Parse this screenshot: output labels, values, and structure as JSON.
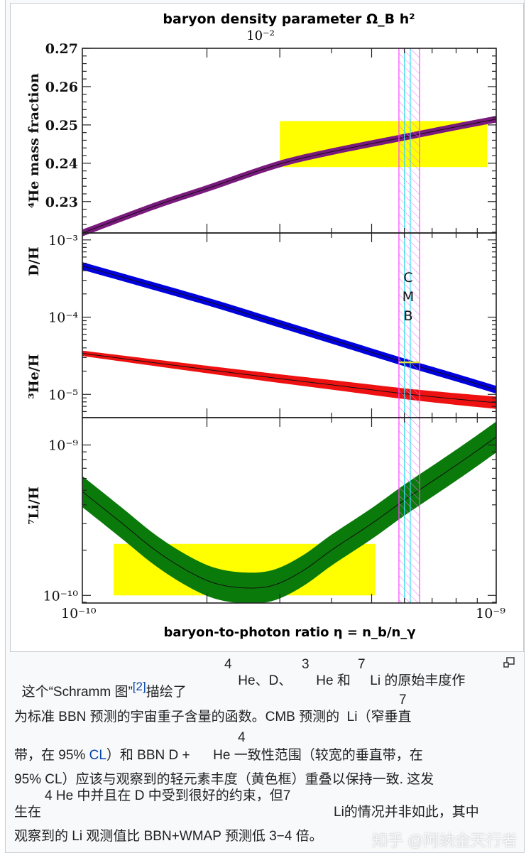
{
  "chart_data": {
    "type": "line",
    "title": "baryon density parameter Ω_B h²",
    "top_axis_tick_label": "10⁻²",
    "xlabel": "baryon-to-photon ratio η = n_b/n_γ",
    "xscale": "log",
    "xlim": [
      1e-10,
      1e-09
    ],
    "xtick_labels": [
      "10⁻¹⁰",
      "10⁻⁹"
    ],
    "panels": [
      {
        "ylabel": "⁴He mass fraction",
        "yscale": "linear",
        "ylim": [
          0.2218,
          0.27
        ],
        "ytick_labels": [
          "0.27",
          "0.26",
          "0.25",
          "0.24",
          "0.23"
        ],
        "yticks": [
          0.27,
          0.26,
          0.25,
          0.24,
          0.23
        ],
        "series": [
          {
            "x": [
              1e-10,
              1.5e-10,
              2e-10,
              3e-10,
              4e-10,
              6e-10,
              8e-10,
              1e-09
            ],
            "y": [
              0.2218,
              0.2289,
              0.2334,
              0.2398,
              0.243,
              0.2468,
              0.2495,
              0.2515
            ],
            "color": "#7b1a7e",
            "halfwidth": 0.0004
          }
        ],
        "observed_box": {
          "x": [
            3e-10,
            9.5e-10
          ],
          "y": [
            0.239,
            0.251
          ],
          "color": "#ffff00"
        }
      },
      {
        "ylabel": "D/H",
        "ylabel2": "³He/H",
        "yscale": "log",
        "ylim": [
          5e-06,
          0.00123
        ],
        "ytick_labels": [
          "10⁻³",
          "10⁻⁴",
          "10⁻⁵"
        ],
        "yticks": [
          0.001,
          0.0001,
          1e-05
        ],
        "series": [
          {
            "name": "D/H",
            "x": [
              1e-10,
              2e-10,
              3e-10,
              4e-10,
              6e-10,
              8e-10,
              1e-09
            ],
            "y": [
              0.00046,
              0.00016,
              8.2e-05,
              5.1e-05,
              2.6e-05,
              1.65e-05,
              1.15e-05
            ],
            "color": "#0000dd",
            "halfwidth_dex": 0.045
          },
          {
            "name": "³He/H",
            "x": [
              1e-10,
              2e-10,
              3e-10,
              4e-10,
              6e-10,
              8e-10,
              1e-09
            ],
            "y": [
              3.4e-05,
              2.1e-05,
              1.6e-05,
              1.33e-05,
              1.02e-05,
              8.7e-06,
              7.8e-06
            ],
            "color": "#ee1111",
            "halfwidth_dex": 0.03,
            "halfwidth_dex_end": 0.075
          }
        ],
        "observed_box": {
          "x": [
            5.82e-10,
            6.53e-10
          ],
          "y": [
            2.6e-05,
            2.6e-05
          ],
          "color": "#e0e040"
        }
      },
      {
        "ylabel": "⁷Li/H",
        "yscale": "log",
        "ylim": [
          8.9e-11,
          1.52e-09
        ],
        "ytick_labels": [
          "10⁻⁹",
          "10⁻¹⁰"
        ],
        "yticks": [
          1e-09,
          1e-10
        ],
        "series": [
          {
            "x": [
              1e-10,
              1.25e-10,
              1.5e-10,
              1.8e-10,
              2.1e-10,
              2.5e-10,
              2.9e-10,
              3.4e-10,
              4e-10,
              5e-10,
              6e-10,
              7.5e-10,
              8.7e-10,
              1e-09
            ],
            "y": [
              4.9e-10,
              3e-10,
              2e-10,
              1.45e-10,
              1.2e-10,
              1.12e-10,
              1.17e-10,
              1.45e-10,
              2e-10,
              3e-10,
              4.3e-10,
              6.5e-10,
              8.6e-10,
              1.13e-09
            ],
            "color": "#0a7a0a",
            "halfwidth_dex": 0.1
          }
        ],
        "observed_box": {
          "x": [
            1.19e-10,
            5.1e-10
          ],
          "y": [
            1e-10,
            2.2e-10
          ],
          "color": "#ffff00"
        }
      }
    ],
    "cmb_band": {
      "label": [
        "C",
        "M",
        "B"
      ],
      "outer": [
        5.82e-10,
        6.53e-10
      ],
      "inner": [
        6e-10,
        6.2e-10
      ],
      "outer_color": "#ff44ff",
      "inner_color": "#33ddee"
    },
    "grid": false
  },
  "caption": {
    "line1": {
      "a": "这个“Schramm 图”",
      "ref": "[2]",
      "b": "描绘了",
      "sup1": "4",
      "c": " He、D、",
      "sup2": "3",
      "d": " He 和 ",
      "sup3": "7",
      "e": " Li 的原始丰度作"
    },
    "line2": {
      "a": "为标准 BBN 预测的宇宙重子含量的函数。CMB 预测的 ",
      "sup": "7",
      "b": " Li（窄垂直"
    },
    "line3": {
      "a": "带，在 95% ",
      "link": "CL",
      "b": "）和 BBN D + ",
      "sup": "4",
      "c": " He 一致性范围（较宽的垂直带，在"
    },
    "line4": "95% CL）应该与观察到的轻元素丰度（黄色框）重叠以保持一致. 这发",
    "line5a": "4 He 中并且在 D 中受到很好的约束，但7",
    "line5b": "生在",
    "line5c": "Li的情况并非如此，其中",
    "line6": "观察到的 Li 观测值比 BBN+WMAP 预测低 3−4 倍。",
    "enlarge_icon": "enlarge-icon"
  },
  "watermark": "知乎 @阿纳金天行者"
}
